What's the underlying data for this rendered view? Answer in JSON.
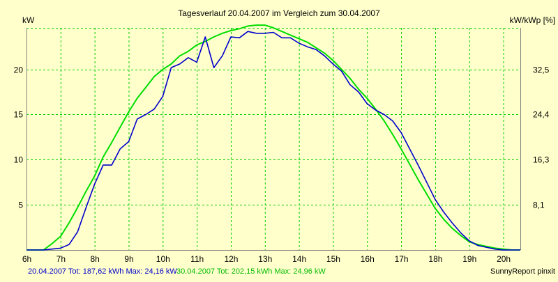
{
  "chart_data": {
    "type": "line",
    "title": "Tagesverlauf 20.04.2007 im Vergleich zum 30.04.2007",
    "ylabel_left": "kW",
    "ylabel_right": "kW/kWp [%]",
    "xlim": [
      6,
      20.5
    ],
    "ylim": [
      0,
      24.6
    ],
    "x_ticks": [
      6,
      7,
      8,
      9,
      10,
      11,
      12,
      13,
      14,
      15,
      16,
      17,
      18,
      19,
      20
    ],
    "x_tick_labels": [
      "6h",
      "7h",
      "8h",
      "9h",
      "10h",
      "11h",
      "12h",
      "13h",
      "14h",
      "15h",
      "16h",
      "17h",
      "18h",
      "19h",
      "20h"
    ],
    "y_ticks": [
      5,
      10,
      15,
      20
    ],
    "y_tick_labels": [
      "5",
      "10",
      "15",
      "20"
    ],
    "y2_ticks": [
      5,
      10,
      15,
      20
    ],
    "y2_tick_labels": [
      "8,1",
      "16,3",
      "24,4",
      "32,5"
    ],
    "grid": true,
    "series": [
      {
        "name": "20.04.2007",
        "color": "#0000cc",
        "x": [
          6.0,
          6.5,
          6.75,
          7.0,
          7.25,
          7.5,
          7.75,
          8.0,
          8.25,
          8.5,
          8.75,
          9.0,
          9.25,
          9.5,
          9.75,
          10.0,
          10.25,
          10.5,
          10.75,
          11.0,
          11.25,
          11.5,
          11.75,
          12.0,
          12.25,
          12.5,
          12.75,
          13.0,
          13.25,
          13.5,
          13.75,
          14.0,
          14.25,
          14.5,
          14.75,
          15.0,
          15.25,
          15.5,
          15.75,
          16.0,
          16.25,
          16.5,
          16.75,
          17.0,
          17.25,
          17.5,
          17.75,
          18.0,
          18.25,
          18.5,
          18.75,
          19.0,
          19.25,
          19.5,
          19.75,
          20.0,
          20.25,
          20.5
        ],
        "y": [
          0,
          0,
          0.1,
          0.2,
          0.6,
          2.0,
          4.7,
          7.3,
          9.4,
          9.4,
          11.2,
          12.0,
          14.5,
          15.0,
          15.6,
          17.0,
          20.2,
          20.6,
          21.3,
          20.8,
          23.6,
          20.2,
          21.5,
          23.6,
          23.5,
          24.2,
          24.0,
          24.0,
          24.1,
          23.5,
          23.5,
          22.9,
          22.5,
          22.2,
          21.5,
          20.6,
          19.8,
          18.3,
          17.5,
          16.2,
          15.5,
          15.0,
          14.3,
          13.0,
          11.2,
          9.4,
          7.5,
          5.6,
          4.2,
          3.0,
          1.9,
          1.0,
          0.5,
          0.3,
          0.1,
          0,
          0,
          0
        ]
      },
      {
        "name": "30.04.2007",
        "color": "#00dd00",
        "x": [
          6.0,
          6.5,
          6.75,
          7.0,
          7.25,
          7.5,
          7.75,
          8.0,
          8.25,
          8.5,
          8.75,
          9.0,
          9.25,
          9.5,
          9.75,
          10.0,
          10.25,
          10.5,
          10.75,
          11.0,
          11.25,
          11.5,
          11.75,
          12.0,
          12.25,
          12.5,
          12.75,
          13.0,
          13.25,
          13.5,
          13.75,
          14.0,
          14.25,
          14.5,
          14.75,
          15.0,
          15.25,
          15.5,
          15.75,
          16.0,
          16.25,
          16.5,
          16.75,
          17.0,
          17.25,
          17.5,
          17.75,
          18.0,
          18.25,
          18.5,
          18.75,
          19.0,
          19.25,
          19.5,
          19.75,
          20.0,
          20.25,
          20.5
        ],
        "y": [
          0,
          0,
          0.7,
          1.5,
          3.0,
          4.7,
          6.5,
          8.2,
          10.3,
          11.9,
          13.6,
          15.3,
          16.8,
          18.0,
          19.2,
          20.0,
          20.6,
          21.5,
          22.0,
          22.7,
          23.1,
          23.6,
          24.0,
          24.3,
          24.5,
          24.8,
          24.9,
          24.9,
          24.6,
          24.2,
          23.8,
          23.4,
          23.0,
          22.4,
          21.8,
          21.0,
          20.0,
          19.0,
          17.8,
          16.8,
          15.6,
          14.3,
          12.8,
          11.2,
          9.5,
          7.8,
          6.2,
          4.6,
          3.4,
          2.4,
          1.6,
          0.9,
          0.6,
          0.4,
          0.2,
          0.1,
          0,
          0
        ]
      }
    ]
  },
  "footer": {
    "series1_text": "20.04.2007 Tot: 187,62 kWh Max: 24,16 kW",
    "series2_text": "30.04.2007 Tot: 202,15 kWh Max: 24,96 kW",
    "brand": "SunnyReport pinxit"
  }
}
